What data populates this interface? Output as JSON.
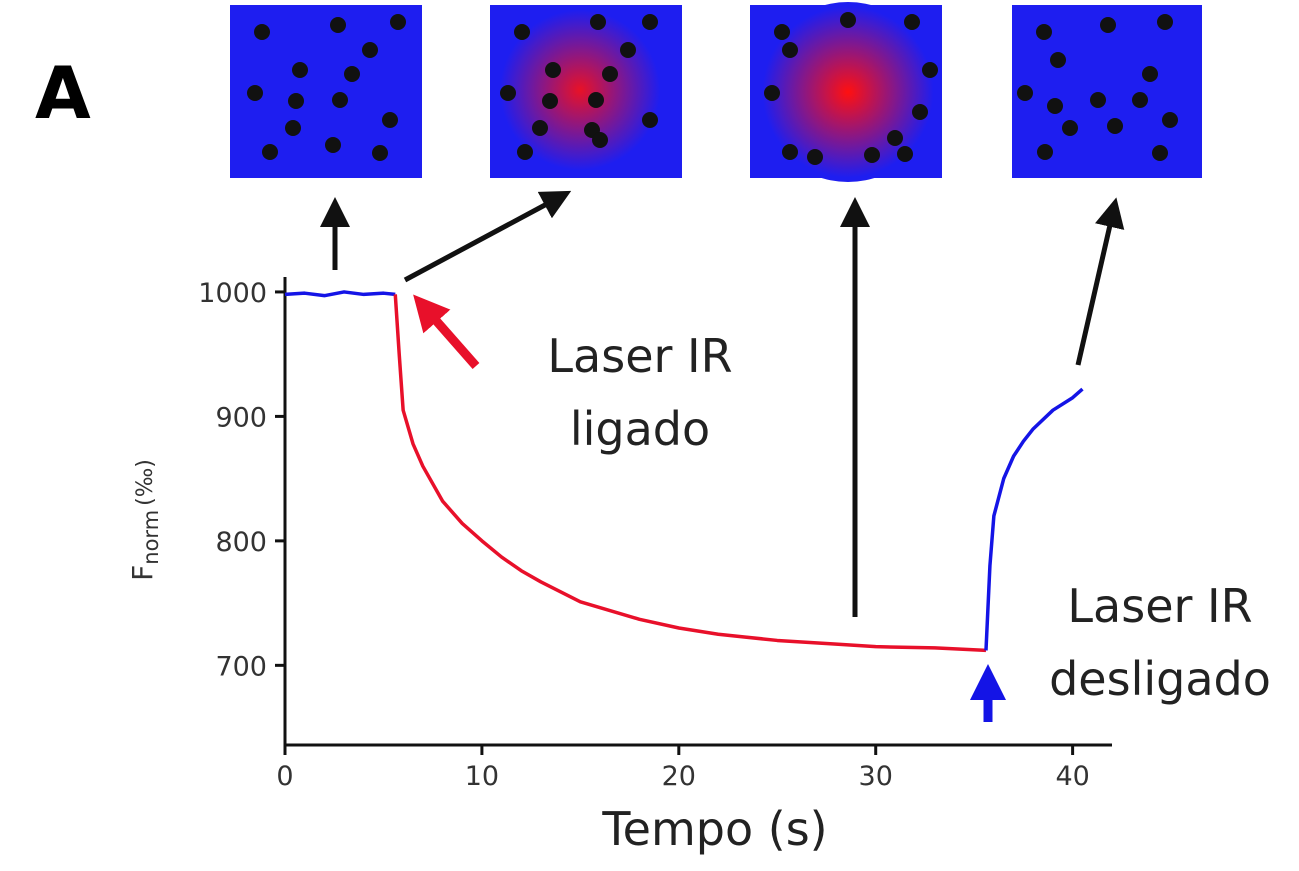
{
  "panel_label": "A",
  "chart_data": {
    "type": "line",
    "x_label": "Tempo (s)",
    "y_label": {
      "main": "F",
      "sub": "norm",
      "unit": "(‰)"
    },
    "xlim": [
      0,
      42
    ],
    "xticks": [
      0,
      10,
      20,
      30,
      40
    ],
    "ylim": [
      636,
      1012
    ],
    "yticks": [
      700,
      800,
      900,
      1000
    ],
    "series": [
      {
        "color": "#1414e6",
        "x": [
          0,
          1,
          2,
          3,
          4,
          5,
          5.6
        ],
        "values": [
          998,
          999,
          997,
          1000,
          998,
          999,
          998
        ]
      },
      {
        "color": "#e8102a",
        "x": [
          5.6,
          5.8,
          6,
          6.5,
          7,
          8,
          9,
          10,
          11,
          12,
          13,
          15,
          18,
          20,
          22,
          25,
          28,
          30,
          33,
          35.6
        ],
        "values": [
          998,
          950,
          905,
          878,
          860,
          832,
          814,
          800,
          787,
          776,
          767,
          751,
          737,
          730,
          725,
          720,
          717,
          715,
          714,
          712
        ]
      },
      {
        "color": "#1414e6",
        "x": [
          35.6,
          35.8,
          36,
          36.5,
          37,
          37.5,
          38,
          39,
          40,
          40.5
        ],
        "values": [
          712,
          780,
          820,
          850,
          868,
          880,
          890,
          905,
          915,
          922
        ]
      }
    ],
    "annotations": [
      {
        "lines": [
          "Laser IR",
          "ligado"
        ],
        "color": "#e8102a"
      },
      {
        "lines": [
          "Laser IR",
          "desligado"
        ],
        "color": "#1414e6"
      }
    ]
  }
}
